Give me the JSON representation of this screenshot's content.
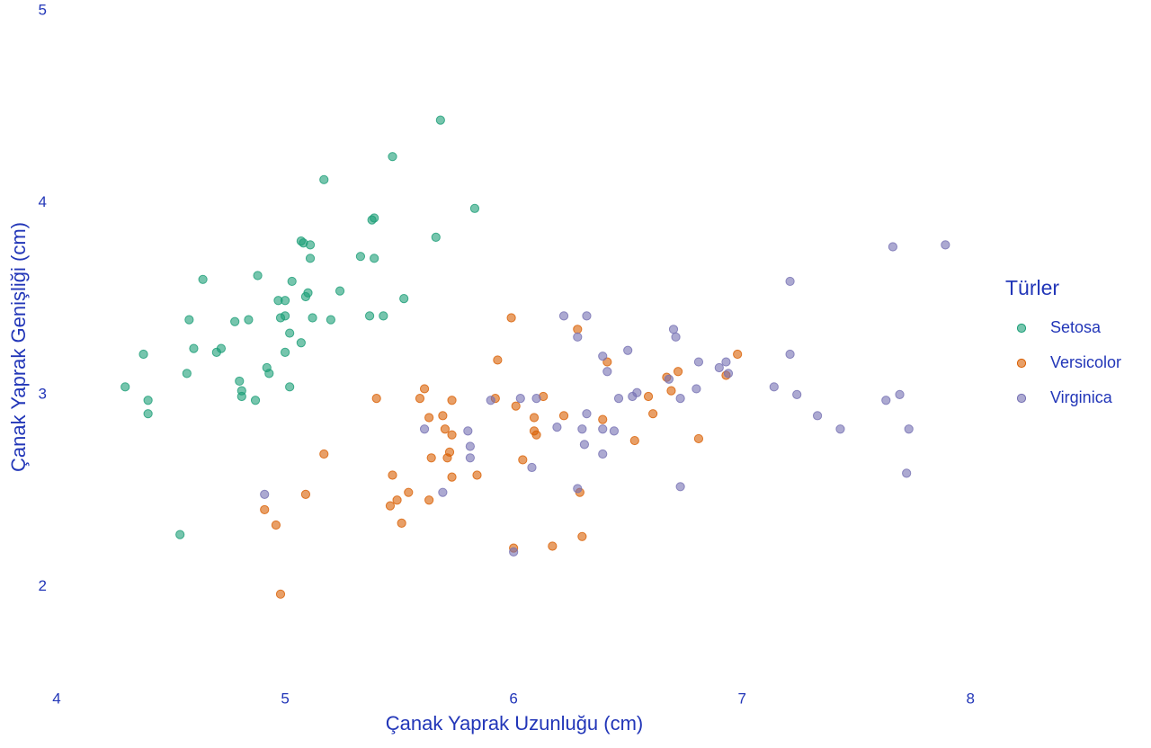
{
  "chart_data": {
    "type": "scatter",
    "x_label": "Çanak Yaprak Uzunluğu (cm)",
    "y_label": "Çanak Yaprak Genişliği (cm)",
    "legend_title": "Türler",
    "xlim": [
      4,
      8.05
    ],
    "ylim": [
      1.5,
      5
    ],
    "xticks": [
      4,
      5,
      6,
      7,
      8
    ],
    "yticks": [
      2,
      3,
      4,
      5
    ],
    "grid": false,
    "series": [
      {
        "name": "Setosa",
        "color": "#1b9e77",
        "x": [
          4.3,
          4.38,
          4.4,
          4.4,
          4.57,
          4.58,
          4.6,
          4.64,
          4.7,
          4.72,
          4.78,
          4.8,
          4.81,
          4.81,
          4.84,
          4.87,
          4.88,
          4.92,
          4.93,
          4.97,
          4.98,
          5.0,
          5.0,
          5.02,
          5.0,
          5.03,
          5.02,
          5.07,
          5.08,
          5.07,
          5.09,
          5.1,
          5.11,
          5.11,
          5.12,
          5.17,
          5.2,
          5.24,
          5.33,
          5.37,
          5.38,
          5.39,
          5.39,
          5.43,
          5.47,
          5.52,
          5.66,
          5.68,
          5.83,
          4.54
        ],
        "values": [
          3.04,
          3.21,
          2.97,
          2.9,
          3.11,
          3.39,
          3.24,
          3.6,
          3.22,
          3.24,
          3.38,
          3.07,
          3.02,
          2.99,
          3.39,
          2.97,
          3.62,
          3.14,
          3.11,
          3.49,
          3.4,
          3.49,
          3.41,
          3.32,
          3.22,
          3.59,
          3.04,
          3.8,
          3.79,
          3.27,
          3.51,
          3.53,
          3.78,
          3.71,
          3.4,
          4.12,
          3.39,
          3.54,
          3.72,
          3.41,
          3.91,
          3.92,
          3.71,
          3.41,
          4.24,
          3.5,
          3.82,
          4.43,
          3.97,
          2.27
        ]
      },
      {
        "name": "Versicolor",
        "color": "#d95f02",
        "x": [
          4.91,
          4.96,
          4.98,
          5.09,
          5.17,
          5.4,
          5.46,
          5.47,
          5.49,
          5.51,
          5.54,
          5.59,
          5.61,
          5.63,
          5.63,
          5.64,
          5.69,
          5.7,
          5.73,
          5.73,
          5.73,
          5.71,
          5.72,
          5.84,
          5.99,
          5.92,
          5.93,
          6.0,
          6.01,
          6.04,
          6.09,
          6.09,
          6.1,
          6.13,
          6.17,
          6.22,
          6.28,
          6.29,
          6.3,
          6.39,
          6.41,
          6.53,
          6.59,
          6.61,
          6.67,
          6.69,
          6.72,
          6.81,
          6.93,
          6.98
        ],
        "values": [
          2.4,
          2.32,
          1.96,
          2.48,
          2.69,
          2.98,
          2.42,
          2.58,
          2.45,
          2.33,
          2.49,
          2.98,
          3.03,
          2.45,
          2.88,
          2.67,
          2.89,
          2.82,
          2.97,
          2.79,
          2.57,
          2.67,
          2.7,
          2.58,
          3.4,
          2.98,
          3.18,
          2.2,
          2.94,
          2.66,
          2.88,
          2.81,
          2.79,
          2.99,
          2.21,
          2.89,
          3.34,
          2.49,
          2.26,
          2.87,
          3.17,
          2.76,
          2.99,
          2.9,
          3.09,
          3.02,
          3.12,
          2.77,
          3.1,
          3.21
        ]
      },
      {
        "name": "Virginica",
        "color": "#7570b3",
        "x": [
          4.91,
          5.61,
          5.69,
          5.8,
          5.81,
          5.81,
          5.9,
          6.0,
          6.03,
          6.08,
          6.1,
          6.19,
          6.22,
          6.28,
          6.28,
          6.3,
          6.31,
          6.32,
          6.32,
          6.39,
          6.39,
          6.39,
          6.41,
          6.44,
          6.46,
          6.5,
          6.52,
          6.54,
          6.68,
          6.7,
          6.71,
          6.73,
          6.73,
          6.8,
          6.81,
          6.9,
          6.93,
          6.94,
          7.14,
          7.21,
          7.21,
          7.24,
          7.33,
          7.43,
          7.63,
          7.66,
          7.69,
          7.72,
          7.73,
          7.89
        ],
        "values": [
          2.48,
          2.82,
          2.49,
          2.81,
          2.73,
          2.67,
          2.97,
          2.18,
          2.98,
          2.62,
          2.98,
          2.83,
          3.41,
          3.3,
          2.51,
          2.82,
          2.74,
          2.9,
          3.41,
          3.2,
          2.69,
          2.82,
          3.12,
          2.81,
          2.98,
          3.23,
          2.99,
          3.01,
          3.08,
          3.34,
          3.3,
          2.98,
          2.52,
          3.03,
          3.17,
          3.14,
          3.17,
          3.11,
          3.04,
          3.59,
          3.21,
          3.0,
          2.89,
          2.82,
          2.97,
          3.77,
          3.0,
          2.59,
          2.82,
          3.78
        ]
      }
    ]
  }
}
